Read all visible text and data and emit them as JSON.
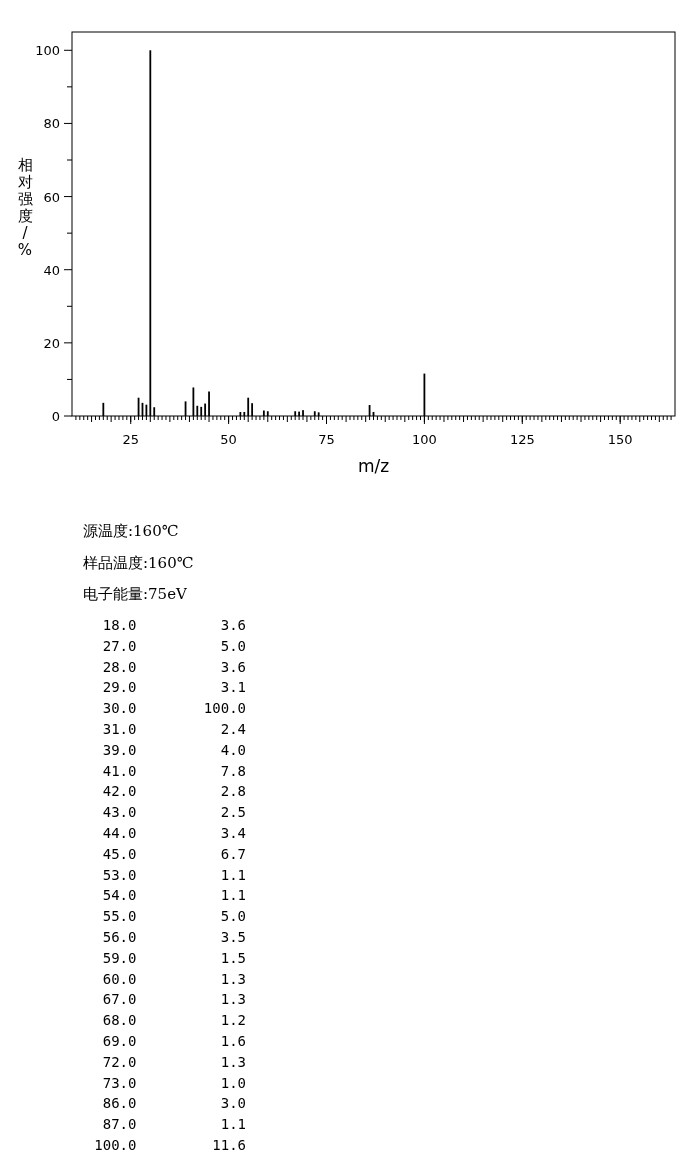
{
  "chart_data": {
    "type": "bar",
    "ylabel": "相对强度/%",
    "xlabel": "m/z",
    "x": [
      18,
      27,
      28,
      29,
      30,
      31,
      39,
      41,
      42,
      43,
      44,
      45,
      53,
      54,
      55,
      56,
      59,
      60,
      67,
      68,
      69,
      72,
      73,
      86,
      87,
      100
    ],
    "values": [
      3.6,
      5.0,
      3.6,
      3.1,
      100.0,
      2.4,
      4.0,
      7.8,
      2.8,
      2.5,
      3.4,
      6.7,
      1.1,
      1.1,
      5.0,
      3.5,
      1.5,
      1.3,
      1.3,
      1.2,
      1.6,
      1.3,
      1.0,
      3.0,
      1.1,
      11.6
    ],
    "color": "#000000",
    "xlim": [
      10,
      164
    ],
    "ylim": [
      0,
      105
    ],
    "xticks": [
      25,
      50,
      75,
      100,
      125,
      150
    ],
    "yticks": [
      0,
      {
        "value": 10,
        "label": null
      },
      20,
      {
        "value": 30,
        "label": null
      },
      40,
      {
        "value": 50,
        "label": null
      },
      60,
      {
        "value": 70,
        "label": null
      },
      80,
      {
        "value": 90,
        "label": null
      },
      100
    ],
    "annotations": [
      "源温度:160℃",
      "样品温度:160℃",
      "电子能量:75eV",
      " 18.0          3.6",
      " 27.0          5.0",
      " 28.0          3.6",
      " 29.0          3.1",
      " 30.0        100.0",
      " 31.0          2.4",
      " 39.0          4.0",
      " 41.0          7.8",
      " 42.0          2.8",
      " 43.0          2.5",
      " 44.0          3.4",
      " 45.0          6.7",
      " 53.0          1.1",
      " 54.0          1.1",
      " 55.0          5.0",
      " 56.0          3.5",
      " 59.0          1.5",
      " 60.0          1.3",
      " 67.0          1.3",
      " 68.0          1.2",
      " 69.0          1.6",
      " 72.0          1.3",
      " 73.0          1.0",
      " 86.0          3.0",
      " 87.0          1.1",
      "100.0         11.6"
    ]
  }
}
